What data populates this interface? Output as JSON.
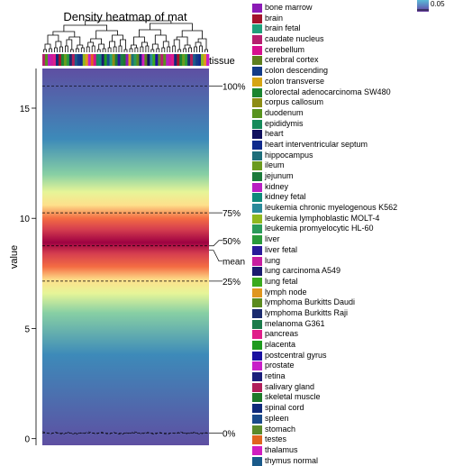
{
  "chart_data": {
    "type": "heatmap",
    "title": "Density heatmap of mat",
    "ylabel": "value",
    "ylim": [
      -0.3,
      16.8
    ],
    "yticks": [
      0,
      5,
      10,
      15
    ],
    "annotation_label": "tissue",
    "quantiles": [
      {
        "label": "100%",
        "value": 16.0
      },
      {
        "label": "75%",
        "value": 10.25
      },
      {
        "label": "50%",
        "value": 8.75
      },
      {
        "label": "mean",
        "value": 8.55
      },
      {
        "label": "25%",
        "value": 7.15
      },
      {
        "label": "0%",
        "value": 0.25
      }
    ],
    "colorkey_label": "0.05",
    "color_stops": [
      {
        "value": -0.3,
        "color": "#5e4fa2"
      },
      {
        "value": 3.8,
        "color": "#3d8ab9"
      },
      {
        "value": 5.7,
        "color": "#87cfa4"
      },
      {
        "value": 6.6,
        "color": "#e6f598"
      },
      {
        "value": 7.2,
        "color": "#fee08b"
      },
      {
        "value": 7.8,
        "color": "#f46d43"
      },
      {
        "value": 8.4,
        "color": "#d53e4f"
      },
      {
        "value": 8.9,
        "color": "#9e0142"
      },
      {
        "value": 9.5,
        "color": "#d53e4f"
      },
      {
        "value": 10.0,
        "color": "#f46d43"
      },
      {
        "value": 10.6,
        "color": "#fee08b"
      },
      {
        "value": 11.2,
        "color": "#e6f598"
      },
      {
        "value": 12.0,
        "color": "#87cfa4"
      },
      {
        "value": 13.6,
        "color": "#3d8ab9"
      },
      {
        "value": 16.8,
        "color": "#5e4fa2"
      }
    ],
    "legend": [
      {
        "label": "bone marrow",
        "color": "#8b1ab5"
      },
      {
        "label": "brain",
        "color": "#a4122b"
      },
      {
        "label": "brain fetal",
        "color": "#1ea07a"
      },
      {
        "label": "caudate nucleus",
        "color": "#b61f6f"
      },
      {
        "label": "cerebellum",
        "color": "#d6108e"
      },
      {
        "label": "cerebral cortex",
        "color": "#5e7f1e"
      },
      {
        "label": "colon descending",
        "color": "#133b87"
      },
      {
        "label": "colon transverse",
        "color": "#d6a514"
      },
      {
        "label": "colorectal adenocarcinoma SW480",
        "color": "#1a8430"
      },
      {
        "label": "corpus callosum",
        "color": "#8c8c14"
      },
      {
        "label": "duodenum",
        "color": "#58931e"
      },
      {
        "label": "epididymis",
        "color": "#168a5a"
      },
      {
        "label": "heart",
        "color": "#10105e"
      },
      {
        "label": "heart interventricular septum",
        "color": "#0f2a8c"
      },
      {
        "label": "hippocampus",
        "color": "#1e6e7a"
      },
      {
        "label": "ileum",
        "color": "#6b9a1e"
      },
      {
        "label": "jejunum",
        "color": "#1a7a3a"
      },
      {
        "label": "kidney",
        "color": "#b81ec2"
      },
      {
        "label": "kidney fetal",
        "color": "#0f8a7a"
      },
      {
        "label": "leukemia chronic myelogenous K562",
        "color": "#2a8a9a"
      },
      {
        "label": "leukemia lymphoblastic MOLT-4",
        "color": "#8fb81e"
      },
      {
        "label": "leukemia promyelocytic HL-60",
        "color": "#2a9a5a"
      },
      {
        "label": "liver",
        "color": "#2a9a3a"
      },
      {
        "label": "liver fetal",
        "color": "#2a1a9a"
      },
      {
        "label": "lung",
        "color": "#c81ea0"
      },
      {
        "label": "lung carcinoma A549",
        "color": "#1a1a6e"
      },
      {
        "label": "lung fetal",
        "color": "#3aaa1e"
      },
      {
        "label": "lymph node",
        "color": "#e0961e"
      },
      {
        "label": "lymphoma Burkitts Daudi",
        "color": "#5a8a1e"
      },
      {
        "label": "lymphoma Burkitts Raji",
        "color": "#1a2a6e"
      },
      {
        "label": "melanoma G361",
        "color": "#1a7a4a"
      },
      {
        "label": "pancreas",
        "color": "#e01e8a"
      },
      {
        "label": "placenta",
        "color": "#1e9a1e"
      },
      {
        "label": "postcentral gyrus",
        "color": "#1a10a0"
      },
      {
        "label": "prostate",
        "color": "#c81ec8"
      },
      {
        "label": "retina",
        "color": "#1a1e7a"
      },
      {
        "label": "salivary gland",
        "color": "#b01e5a"
      },
      {
        "label": "skeletal muscle",
        "color": "#1e7a2a"
      },
      {
        "label": "spinal cord",
        "color": "#0f2a7a"
      },
      {
        "label": "spleen",
        "color": "#1a4a8a"
      },
      {
        "label": "stomach",
        "color": "#5a8a2a"
      },
      {
        "label": "testes",
        "color": "#e0641e"
      },
      {
        "label": "thalamus",
        "color": "#d01ec0"
      },
      {
        "label": "thymus normal",
        "color": "#1a5a8a"
      }
    ]
  }
}
